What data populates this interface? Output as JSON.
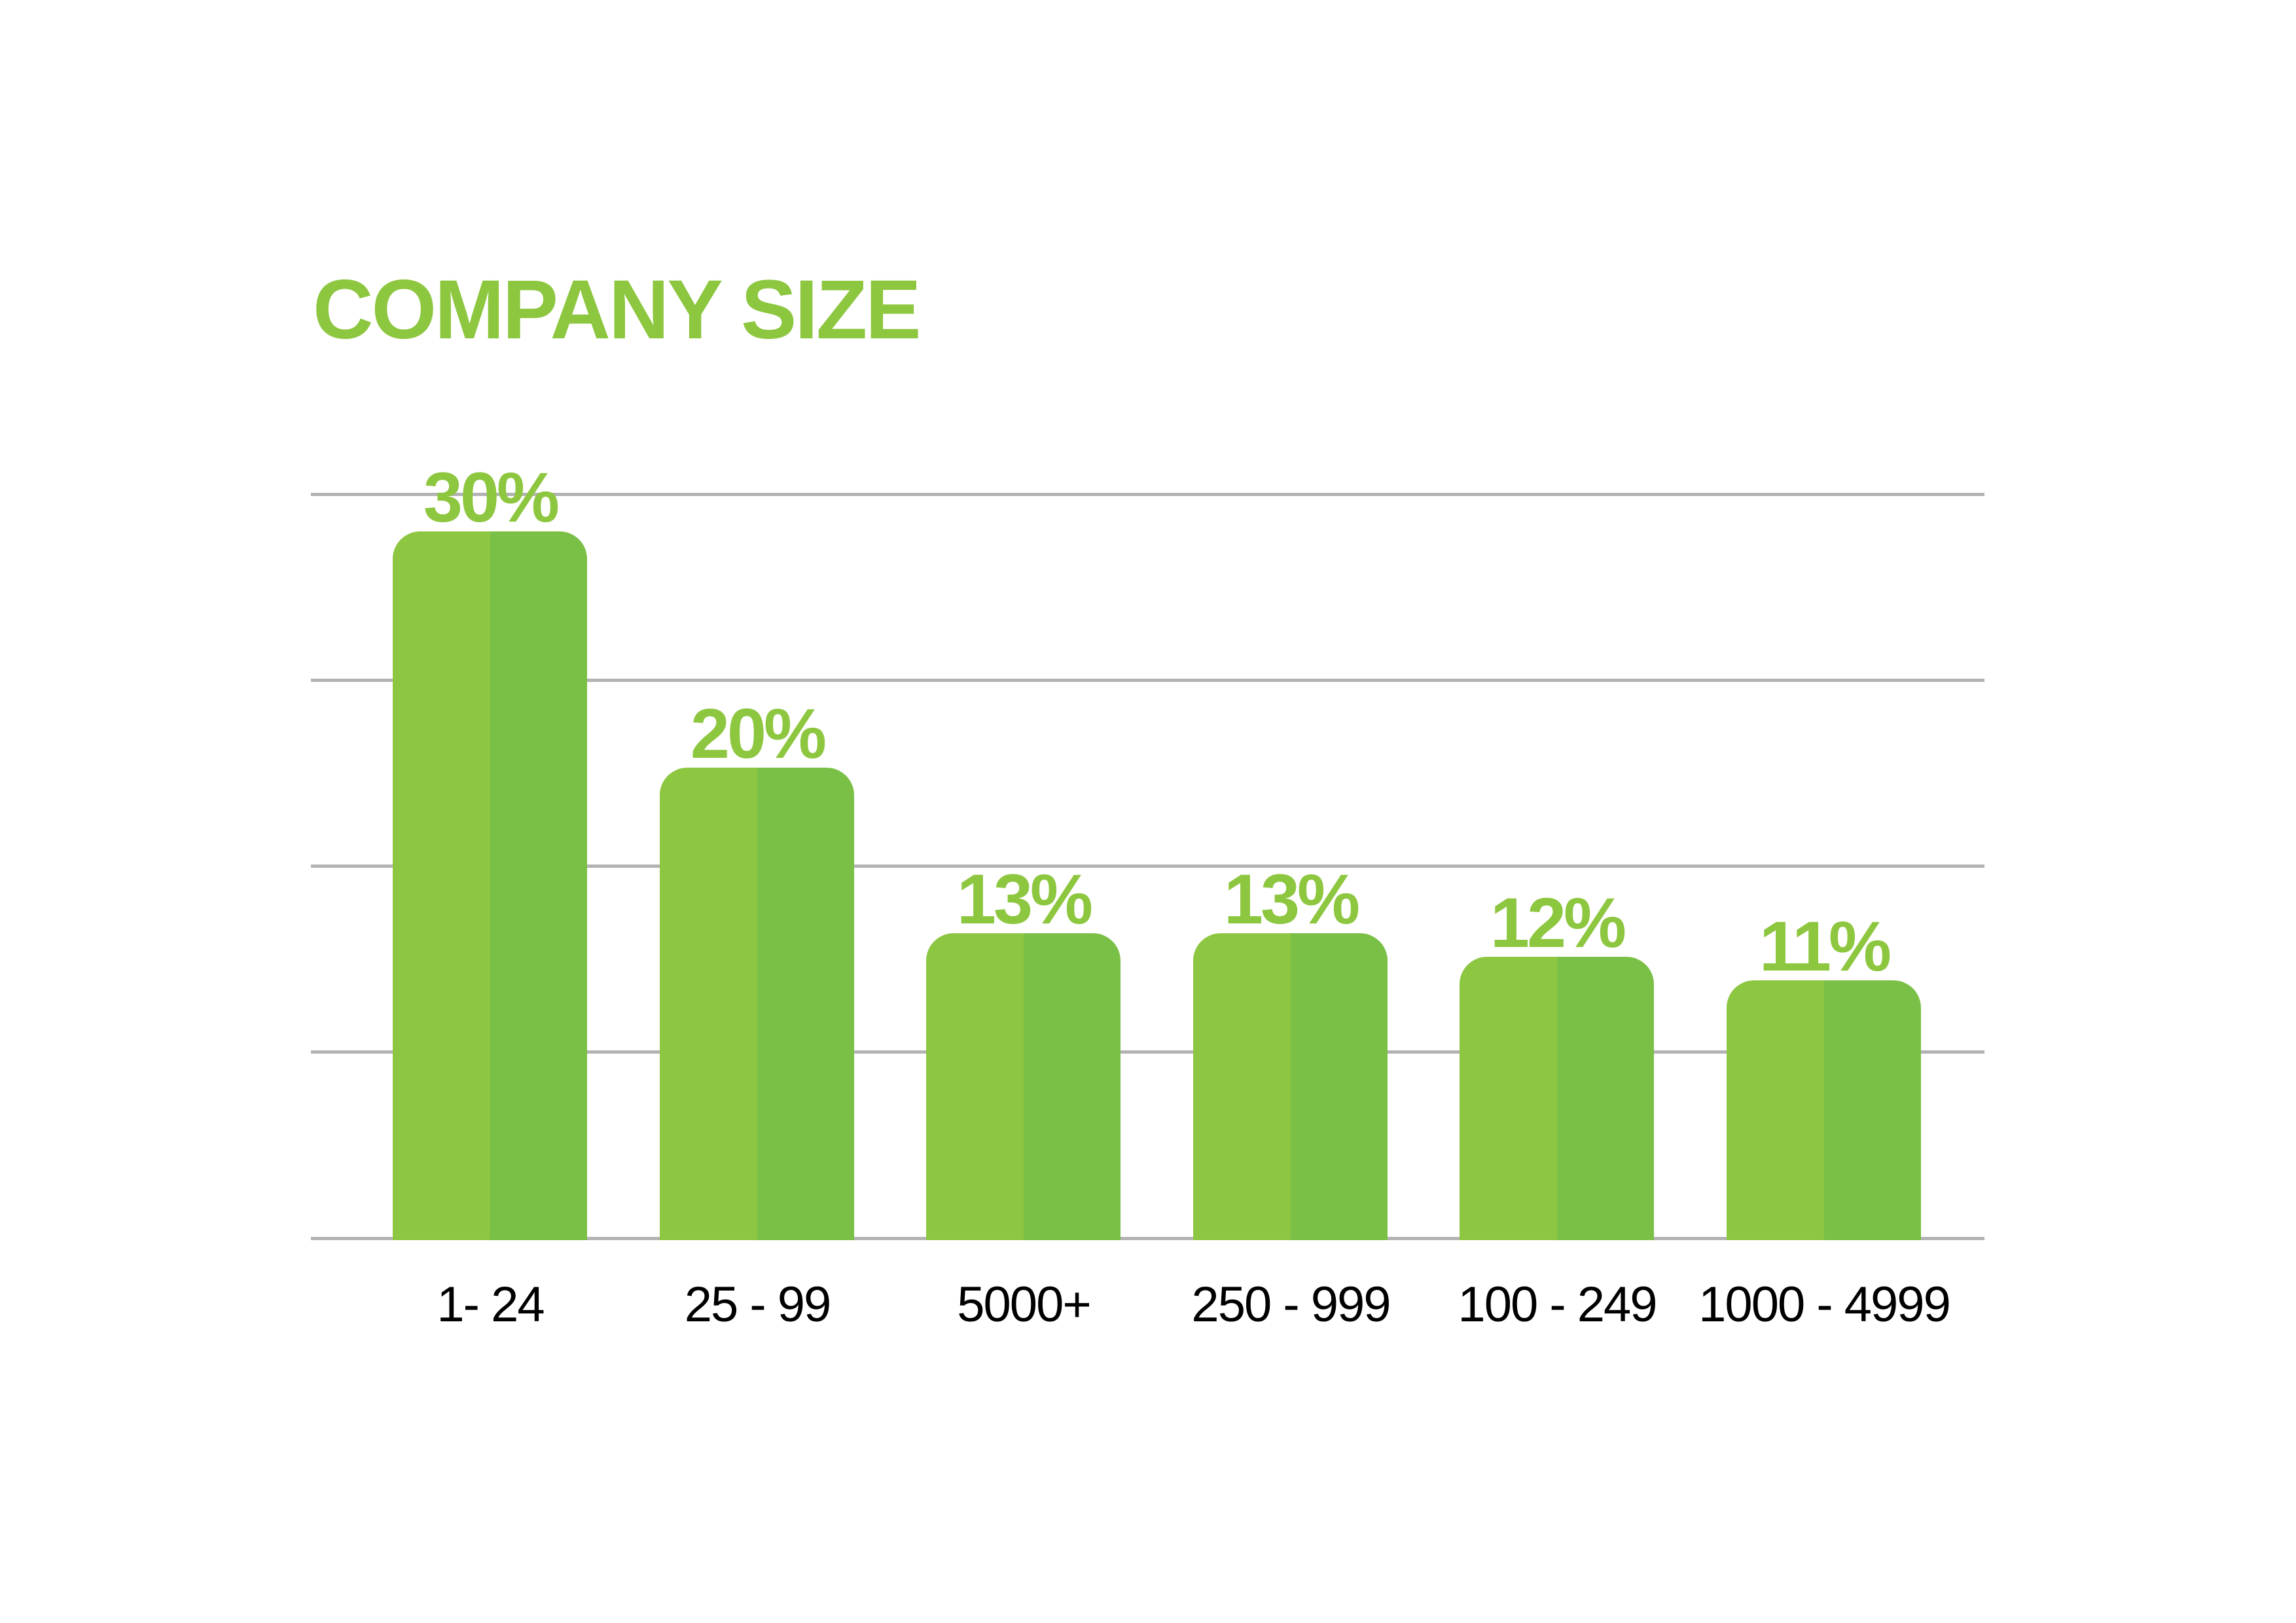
{
  "colors": {
    "accent": "#8DC63F",
    "bar_left": "#8DC641",
    "bar_right": "#7BC046",
    "grid": "#B3B3B3",
    "category_text": "#000000"
  },
  "chart_data": {
    "type": "bar",
    "title": "COMPANY SIZE",
    "xlabel": "",
    "ylabel": "",
    "categories": [
      "1- 24",
      "25 - 99",
      "5000+",
      "250 - 999",
      "100 - 249",
      "1000 - 4999"
    ],
    "values": [
      30,
      20,
      13,
      13,
      12,
      11
    ],
    "value_labels": [
      "30%",
      "20%",
      "13%",
      "13%",
      "12%",
      "11%"
    ],
    "unit": "%",
    "ylim": [
      0,
      31.5
    ],
    "gridlines": 5,
    "grid": true,
    "legend": null
  }
}
